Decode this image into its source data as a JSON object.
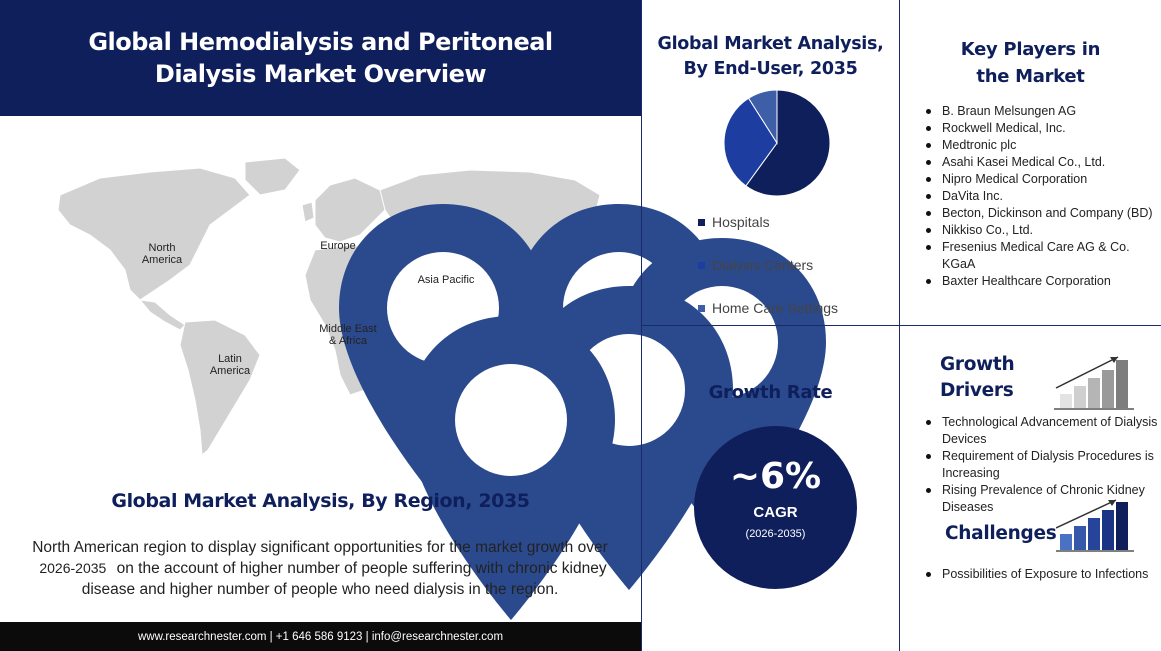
{
  "header": {
    "title": "Global Hemodialysis and Peritoneal Dialysis Market Overview"
  },
  "map": {
    "regions": [
      {
        "label": "North America",
        "lines": [
          "North",
          "America"
        ]
      },
      {
        "label": "Europe",
        "lines": [
          "Europe"
        ]
      },
      {
        "label": "Asia Pacific",
        "lines": [
          "Asia Pacific"
        ]
      },
      {
        "label": "Latin America",
        "lines": [
          "Latin",
          "America"
        ]
      },
      {
        "label": "Middle East & Africa",
        "lines": [
          "Middle East",
          "& Africa"
        ]
      }
    ]
  },
  "region_section": {
    "title": "Global Market Analysis, By Region, 2035",
    "description_pre": "North American region to display significant opportunities for the market growth over",
    "years": "2026-2035",
    "description_post": "on the account of higher number of people suffering with chronic kidney disease and higher number of people who need dialysis in the region."
  },
  "footer": {
    "text": "www.researchnester.com | +1 646 586 9123 | info@researchnester.com"
  },
  "chart_data": {
    "type": "pie",
    "title": "Global Market Analysis, By End-User, 2035",
    "categories": [
      "Hospitals",
      "Dialysis Centers",
      "Home Care Settings"
    ],
    "values": [
      60,
      31,
      9
    ],
    "colors": [
      "#0f1f5c",
      "#1d3da0",
      "#3e5ea8"
    ],
    "legend_position": "bottom"
  },
  "enduser": {
    "title_line1": "Global Market Analysis,",
    "title_line2": "By End-User, 2035"
  },
  "key_players": {
    "title_line1": "Key Players in",
    "title_line2": "the Market",
    "items": [
      "B. Braun Melsungen AG",
      "Rockwell Medical, Inc.",
      "Medtronic plc",
      "Asahi Kasei Medical Co., Ltd.",
      "Nipro Medical Corporation",
      "DaVita Inc.",
      "Becton, Dickinson and Company (BD)",
      "Nikkiso Co., Ltd.",
      "Fresenius Medical Care AG & Co. KGaA",
      "Baxter Healthcare Corporation"
    ]
  },
  "growth_rate": {
    "title": "Growth Rate",
    "value": "~6%",
    "label": "CAGR",
    "period": "(2026-2035)"
  },
  "growth_drivers": {
    "title_line1": "Growth",
    "title_line2": "Drivers",
    "items": [
      "Technological Advancement of Dialysis Devices",
      "Requirement of Dialysis Procedures is Increasing",
      "Rising Prevalence of  Chronic Kidney Diseases"
    ]
  },
  "challenges": {
    "title": "Challenges",
    "items": [
      "Possibilities of Exposure to Infections"
    ]
  },
  "colors": {
    "navy": "#0f1f5c",
    "map_gray": "#d2d2d2",
    "pin": "#2b4a8e"
  }
}
